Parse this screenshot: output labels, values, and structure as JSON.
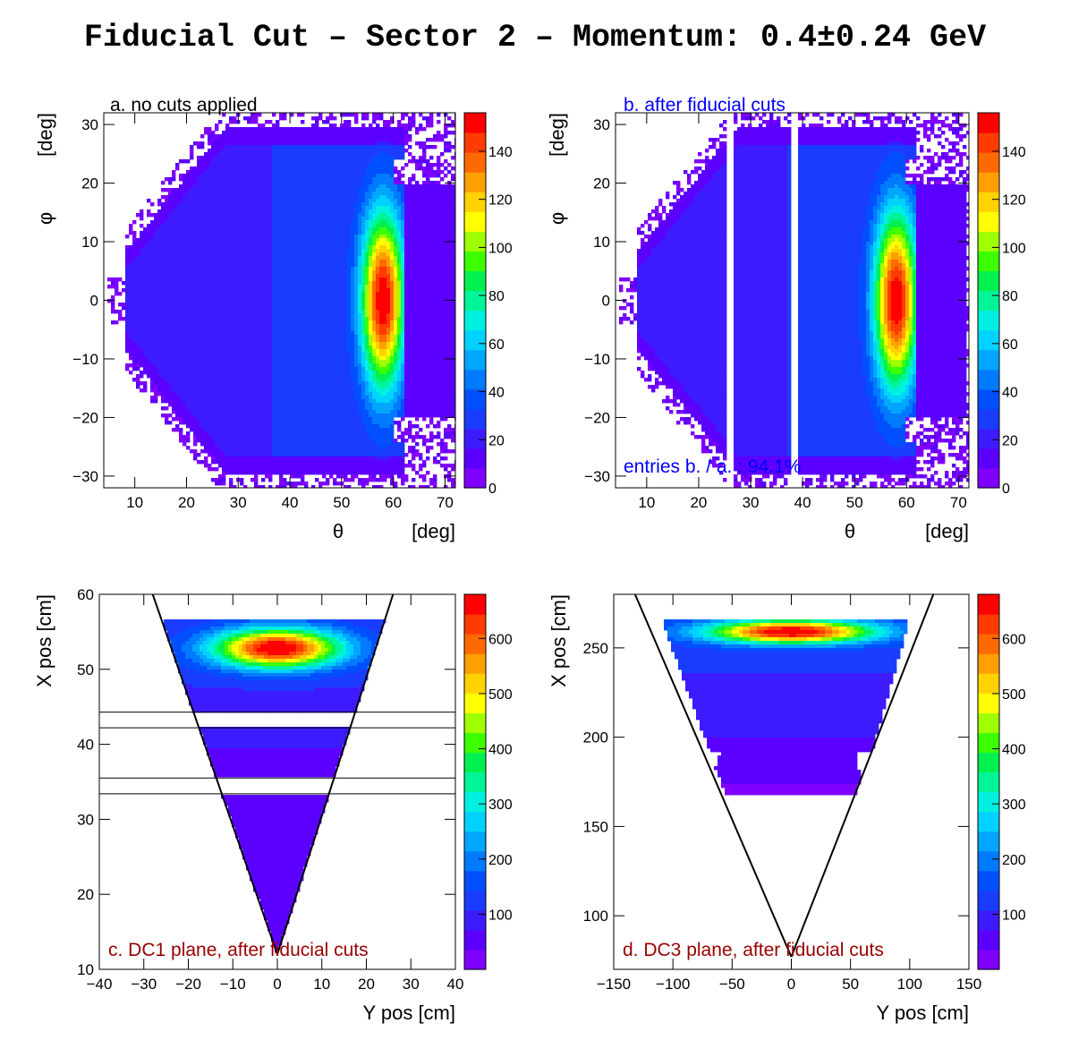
{
  "title": "Fiducial Cut – Sector 2 – Momentum: 0.4±0.24 GeV",
  "colormap": [
    "#7f00ff",
    "#5b00ff",
    "#3c1cff",
    "#1a3cff",
    "#0050ff",
    "#007aff",
    "#00a6ff",
    "#00d2ff",
    "#00f0e0",
    "#00f598",
    "#00f050",
    "#3cff00",
    "#a0ff00",
    "#ffff00",
    "#ffd200",
    "#ffa000",
    "#ff6a00",
    "#ff3c00",
    "#ff0000"
  ],
  "chart_data": [
    {
      "id": "a",
      "type": "heatmap",
      "annotation": "a. no cuts applied",
      "annotation_color": "#000000",
      "xlabel_symbol": "θ",
      "xlabel_unit": "[deg]",
      "ylabel_symbol": "φ",
      "ylabel_unit": "[deg]",
      "xlim": [
        4,
        72
      ],
      "ylim": [
        -32,
        32
      ],
      "xticks": [
        10,
        20,
        30,
        40,
        50,
        60,
        70
      ],
      "yticks": [
        -30,
        -20,
        -10,
        0,
        10,
        20,
        30
      ],
      "zlim": [
        0,
        156
      ],
      "zticks": [
        0,
        20,
        40,
        60,
        80,
        100,
        120,
        140
      ],
      "shape": "fan",
      "peak": {
        "x": 58,
        "y": 0,
        "value": 150
      },
      "gaps": []
    },
    {
      "id": "b",
      "type": "heatmap",
      "annotation": "b. after fiducial cuts",
      "annotation_color": "#0000ff",
      "footnote": "entries b. / a. : 94.1%",
      "footnote_color": "#0000ff",
      "xlabel_symbol": "θ",
      "xlabel_unit": "[deg]",
      "ylabel_symbol": "φ",
      "ylabel_unit": "[deg]",
      "xlim": [
        4,
        72
      ],
      "ylim": [
        -32,
        32
      ],
      "xticks": [
        10,
        20,
        30,
        40,
        50,
        60,
        70
      ],
      "yticks": [
        -30,
        -20,
        -10,
        0,
        10,
        20,
        30
      ],
      "zlim": [
        0,
        156
      ],
      "zticks": [
        0,
        20,
        40,
        60,
        80,
        100,
        120,
        140
      ],
      "shape": "fan",
      "peak": {
        "x": 58,
        "y": 0,
        "value": 150
      },
      "gaps": [
        {
          "x1": 25.5,
          "x2": 27
        },
        {
          "x1": 37.5,
          "x2": 39
        }
      ]
    },
    {
      "id": "c",
      "type": "heatmap",
      "annotation": "c. DC1 plane, after fiducial cuts",
      "annotation_color": "#990000",
      "xlabel": "Y pos [cm]",
      "ylabel": "X pos [cm]",
      "xlim": [
        -40,
        40
      ],
      "ylim": [
        10,
        60
      ],
      "xticks": [
        -40,
        -30,
        -20,
        -10,
        0,
        10,
        20,
        30,
        40
      ],
      "yticks": [
        10,
        20,
        30,
        40,
        50,
        60
      ],
      "zlim": [
        0,
        680
      ],
      "zticks": [
        100,
        200,
        300,
        400,
        500,
        600
      ],
      "shape": "triangle",
      "vertex": {
        "x": 0,
        "y": 12
      },
      "edge_top": {
        "y": 60,
        "x_left": -28,
        "x_right": 26
      },
      "data_top": 56.7,
      "peak": {
        "x": 0,
        "y": 52.8,
        "value": 650
      },
      "gaps": [
        {
          "y1": 42.2,
          "y2": 44.3
        },
        {
          "y1": 33.4,
          "y2": 35.5
        }
      ]
    },
    {
      "id": "d",
      "type": "heatmap",
      "annotation": "d. DC3 plane, after fiducial cuts",
      "annotation_color": "#990000",
      "xlabel": "Y pos [cm]",
      "ylabel": "X pos [cm]",
      "xlim": [
        -150,
        150
      ],
      "ylim": [
        70,
        280
      ],
      "xticks": [
        -150,
        -100,
        -50,
        0,
        50,
        100,
        150
      ],
      "yticks": [
        100,
        150,
        200,
        250
      ],
      "zlim": [
        0,
        680
      ],
      "zticks": [
        100,
        200,
        300,
        400,
        500,
        600
      ],
      "shape": "triangle",
      "vertex": {
        "x": 0,
        "y": 77
      },
      "edge_top": {
        "y": 280,
        "x_left": -132,
        "x_right": 120
      },
      "data_top": 266.5,
      "data_bottom": 168,
      "peak": {
        "x": 0,
        "y": 259,
        "value": 650
      },
      "gaps": []
    }
  ]
}
